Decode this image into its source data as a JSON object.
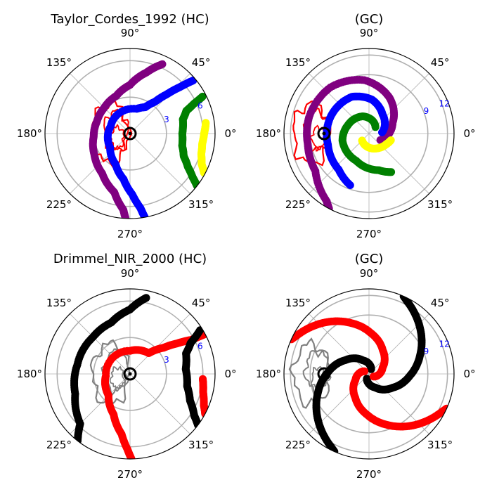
{
  "figure": {
    "colors": {
      "purple": "#800080",
      "blue": "#0000ff",
      "green": "#008000",
      "yellow": "#ffff00",
      "red": "#ff0000",
      "black": "#000000",
      "gray": "#808080",
      "grid": "#b0b0b0",
      "rtick": "#0000ff"
    },
    "angle_tick_labels": [
      "0°",
      "45°",
      "90°",
      "135°",
      "180°",
      "225°",
      "270°",
      "315°"
    ]
  },
  "chart_data": [
    {
      "type": "scatter",
      "projection": "polar",
      "title": "Taylor_Cordes_1992 (HC)",
      "frame": "heliocentric",
      "theta_ticks_deg": [
        0,
        45,
        90,
        135,
        180,
        225,
        270,
        315
      ],
      "r_ticks": [
        3,
        6
      ],
      "r_tick_labels": [
        "3",
        "6"
      ],
      "r_max": 7,
      "grid": true,
      "series": [
        {
          "color": "purple",
          "r": [
            6.3,
            5.2,
            4.0,
            3.3,
            3.0,
            2.9,
            3.0,
            3.4,
            4.0,
            5.0,
            6.3,
            7.0
          ],
          "theta": [
            65,
            75,
            90,
            110,
            135,
            160,
            185,
            210,
            235,
            255,
            265,
            267
          ]
        },
        {
          "color": "blue",
          "r": [
            6.8,
            5.6,
            4.4,
            3.3,
            2.5,
            2.1,
            1.7,
            2.0,
            2.8,
            3.8,
            5.0,
            6.2,
            7.0
          ],
          "theta": [
            40,
            43,
            47,
            52,
            60,
            75,
            160,
            215,
            245,
            262,
            272,
            278,
            280
          ]
        },
        {
          "color": "green",
          "r": [
            6.7,
            5.8,
            5.0,
            4.5,
            4.3,
            4.4,
            4.8,
            5.5,
            6.3,
            7.0
          ],
          "theta": [
            27,
            25,
            22,
            15,
            0,
            -13,
            -23,
            -30,
            -35,
            -38
          ]
        },
        {
          "color": "yellow",
          "r": [
            6.3,
            6.1,
            6.0,
            6.1,
            6.4,
            6.9
          ],
          "theta": [
            8,
            0,
            -8,
            -16,
            -23,
            -28
          ]
        }
      ],
      "overlays": [
        {
          "kind": "contour",
          "color": "red"
        },
        {
          "kind": "sun-marker",
          "color": "black"
        }
      ]
    },
    {
      "type": "scatter",
      "projection": "polar",
      "title": "(GC)",
      "frame": "galactocentric",
      "theta_ticks_deg": [
        0,
        45,
        90,
        135,
        180,
        225,
        270,
        315
      ],
      "r_ticks": [
        9,
        12
      ],
      "r_tick_labels": [
        "9",
        "12"
      ],
      "r_max": 13,
      "grid": true,
      "series": [
        {
          "color": "purple",
          "r": [
            2.0,
            4.0,
            6.3,
            8.2,
            9.2,
            9.5,
            9.5,
            10.0,
            12.2,
            13.0
          ],
          "theta": [
            -30,
            25,
            60,
            95,
            130,
            165,
            190,
            215,
            238,
            242
          ]
        },
        {
          "color": "blue",
          "r": [
            2.0,
            3.6,
            5.2,
            6.2,
            6.4,
            6.5,
            7.2,
            8.4
          ],
          "theta": [
            5,
            55,
            85,
            115,
            155,
            195,
            230,
            250
          ]
        },
        {
          "color": "green",
          "r": [
            1.4,
            2.8,
            3.5,
            4.2,
            4.6,
            5.8,
            6.8
          ],
          "theta": [
            45,
            110,
            160,
            195,
            245,
            285,
            300
          ]
        },
        {
          "color": "yellow",
          "r": [
            1.5,
            2.0,
            2.6,
            3.1,
            3.5
          ],
          "theta": [
            225,
            260,
            300,
            328,
            343
          ]
        }
      ],
      "overlays": [
        {
          "kind": "contour",
          "color": "red"
        },
        {
          "kind": "sun-marker",
          "color": "black"
        }
      ]
    },
    {
      "type": "scatter",
      "projection": "polar",
      "title": "Drimmel_NIR_2000 (HC)",
      "frame": "heliocentric",
      "theta_ticks_deg": [
        0,
        45,
        90,
        135,
        180,
        225,
        270,
        315
      ],
      "r_ticks": [
        3,
        6
      ],
      "r_tick_labels": [
        "3",
        "6"
      ],
      "r_max": 7,
      "grid": true,
      "series": [
        {
          "color": "black",
          "r": [
            6.4,
            5.3,
            4.5,
            4.3,
            4.4,
            4.8,
            5.8,
            7.0
          ],
          "theta": [
            78,
            90,
            110,
            135,
            170,
            200,
            225,
            232
          ]
        },
        {
          "color": "red",
          "r": [
            6.9,
            5.8,
            4.6,
            3.5,
            2.3,
            1.9,
            2.0,
            2.5,
            3.6,
            5.0,
            6.2,
            7.0
          ],
          "theta": [
            28,
            29,
            33,
            38,
            48,
            90,
            185,
            225,
            248,
            262,
            268,
            271
          ]
        },
        {
          "color": "black",
          "r": [
            6.8,
            5.6,
            4.9,
            4.6,
            4.8,
            5.4,
            6.3,
            7.0
          ],
          "theta": [
            32,
            27,
            20,
            5,
            -12,
            -24,
            -33,
            -37
          ]
        },
        {
          "color": "red",
          "r": [
            6.0,
            6.2,
            6.6,
            7.0
          ],
          "theta": [
            -4,
            -14,
            -23,
            -28
          ]
        }
      ],
      "overlays": [
        {
          "kind": "contour",
          "color": "gray"
        },
        {
          "kind": "sun-marker",
          "color": "black"
        }
      ]
    },
    {
      "type": "scatter",
      "projection": "polar",
      "title": "(GC)",
      "frame": "galactocentric",
      "theta_ticks_deg": [
        0,
        45,
        90,
        135,
        180,
        225,
        270,
        315
      ],
      "r_ticks": [
        9,
        12
      ],
      "r_tick_labels": [
        "9",
        "12"
      ],
      "r_max": 13,
      "grid": true,
      "series": [
        {
          "color": "black",
          "r": [
            0.8,
            2.3,
            4.2,
            6.3,
            8.3,
            10.5,
            12.5,
            13.0
          ],
          "theta": [
            65,
            115,
            150,
            178,
            200,
            222,
            242,
            246
          ]
        },
        {
          "color": "red",
          "r": [
            0.8,
            2.3,
            4.2,
            6.3,
            8.3,
            10.5,
            12.5,
            13.0
          ],
          "theta": [
            150,
            205,
            240,
            268,
            290,
            312,
            332,
            336
          ]
        },
        {
          "color": "black",
          "r": [
            0.8,
            2.3,
            4.2,
            6.3,
            8.3,
            10.5,
            12.5,
            13.0
          ],
          "theta": [
            245,
            295,
            330,
            358,
            380,
            402,
            422,
            426
          ]
        },
        {
          "color": "red",
          "r": [
            0.8,
            2.3,
            4.2,
            6.3,
            8.3,
            10.5,
            12.5,
            13.0
          ],
          "theta": [
            330,
            385,
            420,
            448,
            470,
            492,
            512,
            516
          ]
        }
      ],
      "overlays": [
        {
          "kind": "contour",
          "color": "gray"
        },
        {
          "kind": "sun-marker",
          "color": "black"
        }
      ]
    }
  ]
}
